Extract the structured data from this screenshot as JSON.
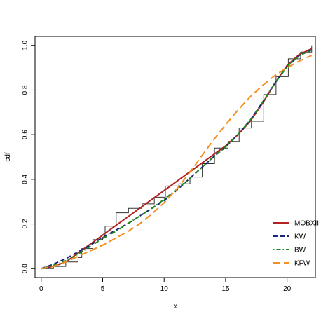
{
  "chart_data": {
    "type": "line",
    "title": "",
    "xlabel": "x",
    "ylabel": "cdf",
    "xlim": [
      -0.5,
      22.3
    ],
    "ylim": [
      -0.04,
      1.04
    ],
    "xticks": [
      0,
      5,
      10,
      15,
      20
    ],
    "xtick_labels": [
      "0",
      "5",
      "10",
      "15",
      "20"
    ],
    "yticks": [
      0.0,
      0.2,
      0.4,
      0.6,
      0.8,
      1.0
    ],
    "ytick_labels": [
      "0.0",
      "0.2",
      "0.4",
      "0.6",
      "0.8",
      "1.0"
    ],
    "grid": false,
    "legend_position": "bottom-right",
    "empirical_cdf": {
      "color": "#333333",
      "steps": [
        [
          0,
          0.0
        ],
        [
          1,
          0.01
        ],
        [
          2,
          0.03
        ],
        [
          3,
          0.05
        ],
        [
          3.3,
          0.09
        ],
        [
          4,
          0.09
        ],
        [
          4.2,
          0.13
        ],
        [
          5,
          0.14
        ],
        [
          5.2,
          0.19
        ],
        [
          6,
          0.19
        ],
        [
          6.1,
          0.25
        ],
        [
          7,
          0.25
        ],
        [
          7.1,
          0.27
        ],
        [
          8,
          0.27
        ],
        [
          8.2,
          0.29
        ],
        [
          9,
          0.29
        ],
        [
          9.2,
          0.32
        ],
        [
          10,
          0.32
        ],
        [
          10.1,
          0.37
        ],
        [
          11,
          0.37
        ],
        [
          11.2,
          0.38
        ],
        [
          12,
          0.38
        ],
        [
          12.1,
          0.41
        ],
        [
          13,
          0.41
        ],
        [
          13.1,
          0.47
        ],
        [
          14,
          0.47
        ],
        [
          14.1,
          0.54
        ],
        [
          15,
          0.54
        ],
        [
          15.2,
          0.57
        ],
        [
          16,
          0.57
        ],
        [
          16.1,
          0.63
        ],
        [
          17,
          0.63
        ],
        [
          17.1,
          0.66
        ],
        [
          18,
          0.66
        ],
        [
          18.1,
          0.78
        ],
        [
          19,
          0.78
        ],
        [
          19.1,
          0.86
        ],
        [
          20,
          0.86
        ],
        [
          20.1,
          0.94
        ],
        [
          21,
          0.94
        ],
        [
          21.1,
          0.97
        ],
        [
          22,
          0.97
        ],
        [
          22,
          1.0
        ]
      ]
    },
    "series": [
      {
        "name": "MOBXII",
        "color": "#b22222",
        "dash": "solid",
        "x": [
          0,
          1,
          2,
          3,
          4,
          5,
          6,
          7,
          8,
          9,
          10,
          11,
          12,
          13,
          14,
          15,
          16,
          17,
          18,
          19,
          20,
          21,
          22
        ],
        "y": [
          0.0,
          0.01,
          0.03,
          0.07,
          0.11,
          0.15,
          0.19,
          0.23,
          0.27,
          0.31,
          0.35,
          0.39,
          0.43,
          0.47,
          0.51,
          0.55,
          0.6,
          0.66,
          0.74,
          0.83,
          0.91,
          0.96,
          0.985
        ]
      },
      {
        "name": "KW",
        "color": "#1a237e",
        "dash": "dashed",
        "x": [
          0,
          1,
          2,
          3,
          4,
          5,
          6,
          7,
          8,
          9,
          10,
          11,
          12,
          13,
          14,
          15,
          16,
          17,
          18,
          19,
          20,
          21,
          22
        ],
        "y": [
          0.0,
          0.02,
          0.045,
          0.075,
          0.105,
          0.14,
          0.17,
          0.2,
          0.235,
          0.27,
          0.305,
          0.35,
          0.4,
          0.45,
          0.5,
          0.545,
          0.6,
          0.665,
          0.745,
          0.83,
          0.905,
          0.955,
          0.98
        ]
      },
      {
        "name": "BW",
        "color": "#1b8a1b",
        "dash": "dotdash",
        "x": [
          0,
          1,
          2,
          3,
          4,
          5,
          6,
          7,
          8,
          9,
          10,
          11,
          12,
          13,
          14,
          15,
          16,
          17,
          18,
          19,
          20,
          21,
          22
        ],
        "y": [
          0.0,
          0.015,
          0.035,
          0.065,
          0.1,
          0.135,
          0.165,
          0.2,
          0.235,
          0.27,
          0.31,
          0.355,
          0.4,
          0.45,
          0.5,
          0.545,
          0.6,
          0.665,
          0.745,
          0.83,
          0.905,
          0.955,
          0.98
        ]
      },
      {
        "name": "KFW",
        "color": "#f5901e",
        "dash": "longdash",
        "x": [
          0,
          1,
          2,
          3,
          4,
          5,
          6,
          7,
          8,
          9,
          10,
          11,
          12,
          13,
          14,
          15,
          16,
          17,
          18,
          19,
          20,
          21,
          22
        ],
        "y": [
          0.0,
          0.01,
          0.03,
          0.055,
          0.08,
          0.105,
          0.135,
          0.165,
          0.2,
          0.245,
          0.295,
          0.355,
          0.425,
          0.5,
          0.575,
          0.645,
          0.71,
          0.77,
          0.82,
          0.865,
          0.9,
          0.93,
          0.955
        ]
      }
    ]
  }
}
